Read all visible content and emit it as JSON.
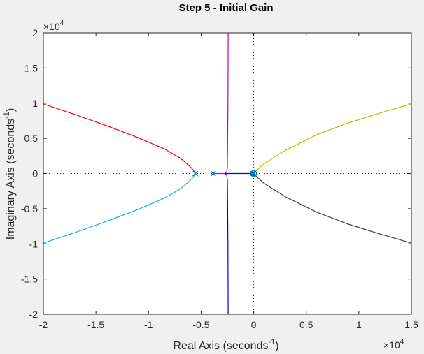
{
  "chart_data": {
    "type": "scatter",
    "title": "Step 5 - Initial Gain",
    "xlabel": {
      "main": "Real Axis (seconds",
      "sup": "-1",
      "tail": ")"
    },
    "ylabel": {
      "main": "Imaginary Axis (seconds",
      "sup": "-1",
      "tail": ")"
    },
    "x_multiplier": {
      "base": "×10",
      "exp": "4"
    },
    "y_multiplier": {
      "base": "×10",
      "exp": "4"
    },
    "xlim": [
      -2,
      1.5
    ],
    "ylim": [
      -2,
      2
    ],
    "xticks": [
      -2,
      -1.5,
      -1,
      -0.5,
      0,
      0.5,
      1,
      1.5
    ],
    "xtick_labels": [
      "-2",
      "-1.5",
      "-1",
      "-0.5",
      "0",
      "0.5",
      "1",
      "1.5"
    ],
    "yticks": [
      -2,
      -1.5,
      -1,
      -0.5,
      0,
      0.5,
      1,
      1.5,
      2
    ],
    "ytick_labels": [
      "-2",
      "-1.5",
      "-1",
      "-0.5",
      "0",
      "0.5",
      "1",
      "1.5",
      "2"
    ],
    "grid": false,
    "series": [
      {
        "color": "#ff0000",
        "x": [
          -2,
          -1.7,
          -1.4,
          -1.1,
          -0.85,
          -0.7,
          -0.62,
          -0.575,
          -0.555
        ],
        "y": [
          0.99,
          0.84,
          0.68,
          0.51,
          0.35,
          0.22,
          0.12,
          0.05,
          0
        ]
      },
      {
        "color": "#00bcd4",
        "x": [
          -2,
          -1.7,
          -1.4,
          -1.1,
          -0.85,
          -0.7,
          -0.62,
          -0.575,
          -0.555
        ],
        "y": [
          -0.99,
          -0.84,
          -0.68,
          -0.51,
          -0.35,
          -0.22,
          -0.12,
          -0.05,
          0
        ]
      },
      {
        "color": "#c000c0",
        "x": [
          -0.385,
          -0.27,
          -0.255,
          -0.25,
          -0.248,
          -0.245,
          -0.243
        ],
        "y": [
          0,
          0,
          0.03,
          0.1,
          0.4,
          1.0,
          2.0
        ]
      },
      {
        "color": "#0000cc",
        "x": [
          -0.27,
          -0.255,
          -0.25,
          -0.248,
          -0.245,
          -0.243
        ],
        "y": [
          0,
          -0.03,
          -0.1,
          -0.4,
          -1.0,
          -2.0
        ]
      },
      {
        "color": "#0000ff",
        "x": [
          -0.27,
          -0.02
        ],
        "y": [
          0,
          0
        ]
      },
      {
        "color": "#bdbd00",
        "x": [
          0,
          0.03,
          0.1,
          0.3,
          0.6,
          0.9,
          1.2,
          1.5
        ],
        "y": [
          0,
          0.05,
          0.14,
          0.33,
          0.55,
          0.72,
          0.86,
          0.99
        ]
      },
      {
        "color": "#404040",
        "x": [
          0,
          0.03,
          0.1,
          0.3,
          0.6,
          0.9,
          1.2,
          1.5
        ],
        "y": [
          0,
          -0.05,
          -0.14,
          -0.33,
          -0.55,
          -0.72,
          -0.86,
          -0.99
        ]
      }
    ],
    "poles": {
      "color": "#0072bd",
      "x": [
        -0.555,
        -0.385,
        0,
        -0.01
      ],
      "y": [
        0,
        0,
        0,
        0
      ]
    },
    "zeros": {
      "color": "#0072bd",
      "x": [
        0
      ],
      "y": [
        0
      ]
    }
  }
}
